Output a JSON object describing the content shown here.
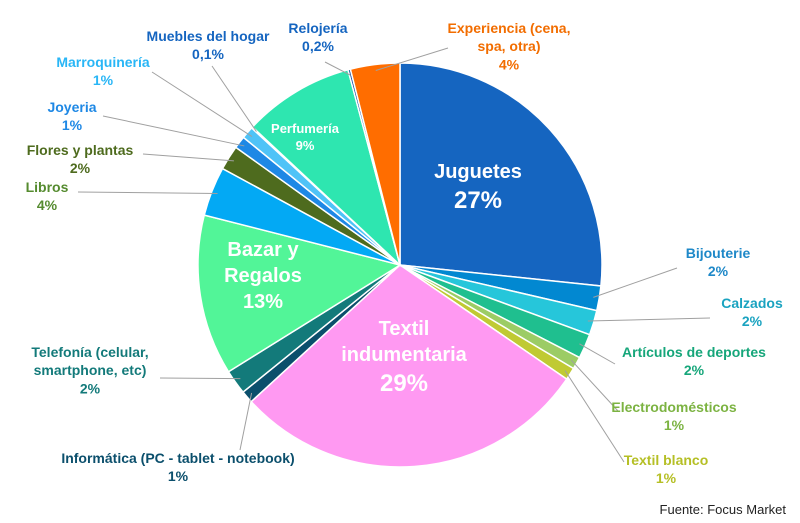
{
  "chart_data": {
    "type": "pie",
    "start_angle_deg": 0,
    "direction": "clockwise",
    "slices": [
      {
        "label": "Juguetes",
        "value_label": "27%",
        "value": 27,
        "color": "#1565c0"
      },
      {
        "label": "Bijouterie",
        "value_label": "2%",
        "value": 2,
        "color": "#0288d1"
      },
      {
        "label": "Calzados",
        "value_label": "2%",
        "value": 2,
        "color": "#26c6da"
      },
      {
        "label": "Artículos de deportes",
        "value_label": "2%",
        "value": 2,
        "color": "#1fbf8f"
      },
      {
        "label": "Electrodomésticos",
        "value_label": "1%",
        "value": 1,
        "color": "#9ccc65"
      },
      {
        "label": "Textil blanco",
        "value_label": "1%",
        "value": 1,
        "color": "#c0ca33"
      },
      {
        "label": "Textil indumentaria",
        "value_label": "29%",
        "value": 29,
        "color": "#ff99f2"
      },
      {
        "label": "Informática (PC - tablet - notebook)",
        "value_label": "1%",
        "value": 1,
        "color": "#0b4f6c"
      },
      {
        "label": "Telefonía (celular, smartphone, etc)",
        "value_label": "2%",
        "value": 2,
        "color": "#137a7a"
      },
      {
        "label": "Bazar y Regalos",
        "value_label": "13%",
        "value": 13,
        "color": "#52f598"
      },
      {
        "label": "Libros",
        "value_label": "4%",
        "value": 4,
        "color": "#03a9f4"
      },
      {
        "label": "Flores y plantas",
        "value_label": "2%",
        "value": 2,
        "color": "#4e6b1e"
      },
      {
        "label": "Joyeria",
        "value_label": "1%",
        "value": 1,
        "color": "#1e88e5"
      },
      {
        "label": "Marroquinería",
        "value_label": "1%",
        "value": 1,
        "color": "#4fc3f7"
      },
      {
        "label": "Muebles del hogar",
        "value_label": "0,1%",
        "value": 0.1,
        "color": "#1976d2"
      },
      {
        "label": "Perfumería",
        "value_label": "9%",
        "value": 9,
        "color": "#2ee6b0"
      },
      {
        "label": "Relojería",
        "value_label": "0,2%",
        "value": 0.2,
        "color": "#0d47a1"
      },
      {
        "label": "Experiencia (cena, spa, otra)",
        "value_label": "4%",
        "value": 4,
        "color": "#ff6d00"
      }
    ]
  },
  "source": "Fuente: Focus Market"
}
